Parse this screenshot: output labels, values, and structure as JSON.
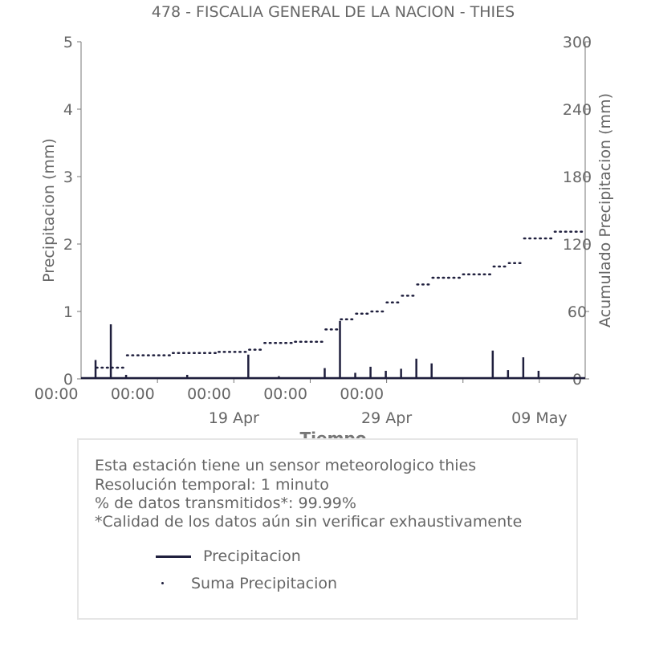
{
  "chart_data": {
    "type": "line",
    "title": "478 - FISCALIA GENERAL DE LA NACION - THIES",
    "xlabel": "Tiempo",
    "ylabel": "Precipitacion (mm)",
    "y2label": "Acumulado Precipitacion (mm)",
    "ylim": [
      0,
      5
    ],
    "y2lim": [
      0,
      300
    ],
    "yticks": [
      0,
      1,
      2,
      3,
      4,
      5
    ],
    "y2ticks": [
      0,
      60,
      120,
      180,
      240,
      300
    ],
    "x_tick_labels": [
      "00:00",
      "00:00",
      "00:00",
      "00:00",
      "00:00"
    ],
    "x_date_labels": [
      "19 Apr",
      "29 Apr",
      "09 May"
    ],
    "grid": false,
    "series": [
      {
        "name": "Precipitacion",
        "style": "line",
        "color": "#1f1f3d",
        "x": [
          "2024-04-10",
          "2024-04-11",
          "2024-04-12",
          "2024-04-16",
          "2024-04-20",
          "2024-04-22",
          "2024-04-25",
          "2024-04-26",
          "2024-04-27",
          "2024-04-28",
          "2024-04-29",
          "2024-04-30",
          "2024-05-01",
          "2024-05-02",
          "2024-05-06",
          "2024-05-07",
          "2024-05-08",
          "2024-05-09"
        ],
        "values": [
          0.28,
          0.81,
          0.06,
          0.06,
          0.36,
          0.04,
          0.16,
          0.86,
          0.09,
          0.18,
          0.12,
          0.15,
          0.3,
          0.23,
          0.42,
          0.13,
          0.32,
          0.12
        ]
      },
      {
        "name": "Suma Precipitacion",
        "style": "dotted",
        "color": "#1f1f3d",
        "x": [
          "2024-04-10",
          "2024-04-11",
          "2024-04-12",
          "2024-04-15",
          "2024-04-18",
          "2024-04-20",
          "2024-04-21",
          "2024-04-23",
          "2024-04-25",
          "2024-04-26",
          "2024-04-27",
          "2024-04-28",
          "2024-04-29",
          "2024-04-30",
          "2024-05-01",
          "2024-05-02",
          "2024-05-04",
          "2024-05-06",
          "2024-05-07",
          "2024-05-08",
          "2024-05-10",
          "2024-05-12"
        ],
        "values": [
          10,
          10,
          21,
          23,
          24,
          26,
          32,
          33,
          44,
          53,
          58,
          60,
          68,
          74,
          84,
          90,
          93,
          100,
          103,
          125,
          131,
          136
        ]
      }
    ],
    "legend": {
      "placement": "bottom"
    }
  },
  "info": {
    "line1": "Esta estación tiene un sensor meteorologico thies",
    "line2": "Resolución temporal: 1 minuto",
    "line3": "% de datos transmitidos*: 99.99%",
    "line4": "*Calidad de los datos aún sin verificar exhaustivamente"
  },
  "legend_labels": {
    "line": "Precipitacion",
    "dots": "Suma Precipitacion"
  }
}
